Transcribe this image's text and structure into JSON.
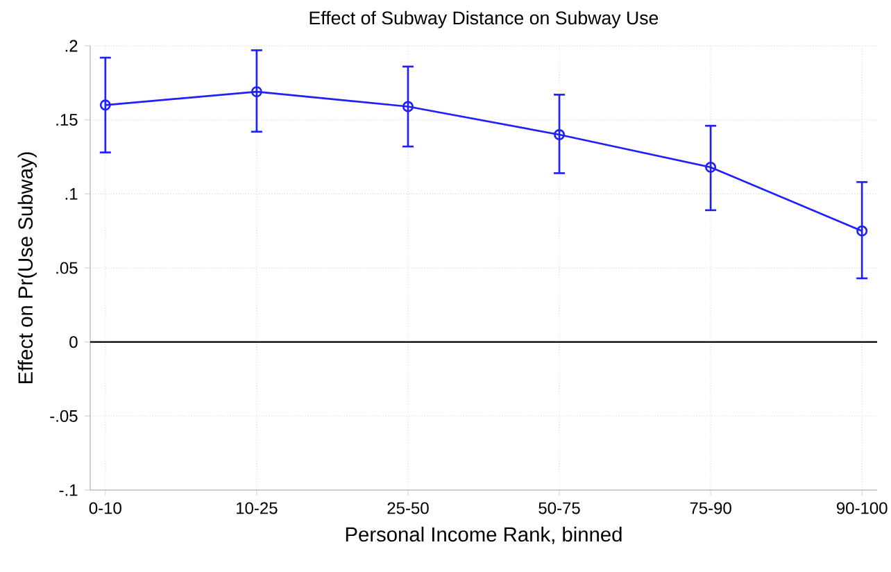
{
  "chart_data": {
    "type": "line",
    "title": "Effect of Subway Distance on Subway Use",
    "xlabel": "Personal Income Rank, binned",
    "ylabel": "Effect on Pr(Use Subway)",
    "categories": [
      "0-10",
      "10-25",
      "25-50",
      "50-75",
      "75-90",
      "90-100"
    ],
    "series": [
      {
        "color": "#1f1fff",
        "values": [
          0.16,
          0.169,
          0.159,
          0.14,
          0.118,
          0.075
        ],
        "errors": [
          [
            0.128,
            0.192
          ],
          [
            0.142,
            0.197
          ],
          [
            0.132,
            0.186
          ],
          [
            0.114,
            0.167
          ],
          [
            0.089,
            0.146
          ],
          [
            0.043,
            0.108
          ]
        ]
      }
    ],
    "ylim": [
      -0.1,
      0.2
    ],
    "yticks": [
      {
        "value": -0.1,
        "label": "-.1"
      },
      {
        "value": -0.05,
        "label": "-.05"
      },
      0,
      {
        "value": 0.05,
        "label": ".05"
      },
      {
        "value": 0.1,
        "label": ".1"
      },
      {
        "value": 0.15,
        "label": ".15"
      },
      {
        "value": 0.2,
        "label": ".2"
      }
    ],
    "ref_lines": [
      {
        "axis": "y",
        "value": 0,
        "color": "#000000"
      }
    ],
    "grid": true,
    "marker": "circle",
    "line_style": "solid"
  }
}
